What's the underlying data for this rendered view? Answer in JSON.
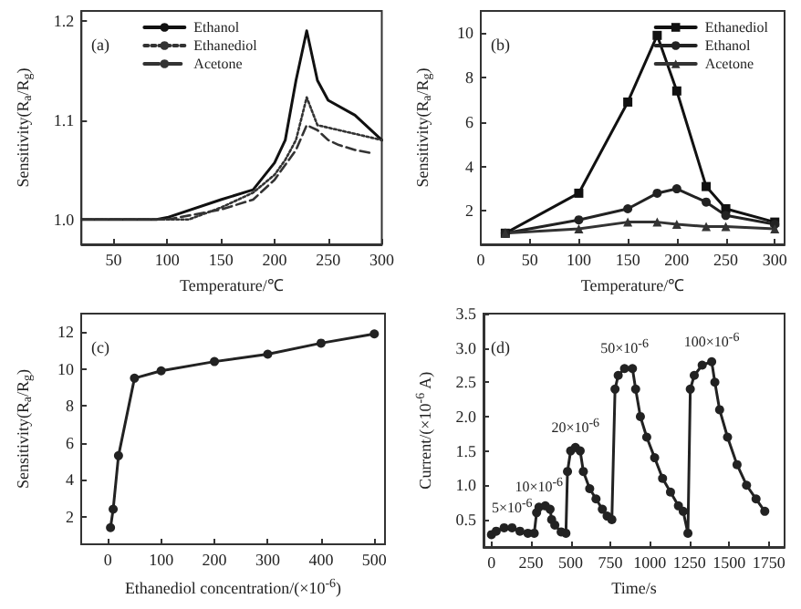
{
  "chart_data": [
    {
      "type": "line",
      "xlabel": "Temperature/℃",
      "ylabel": "Sensitivity(R$_{a}$/R$_{g}$)",
      "annotations": [
        "(a)"
      ],
      "xlim": [
        20,
        300
      ],
      "xticks": [
        50,
        100,
        150,
        200,
        250,
        300
      ],
      "ylim": [
        0.975,
        1.21
      ],
      "yticks": [
        {
          "value": 1,
          "label": "1.0"
        },
        1.1,
        1.2
      ],
      "grid": false,
      "legend": "top",
      "marker": "none",
      "series": [
        {
          "name": "Ethanol",
          "color": "#111111",
          "line_style": "solid",
          "x": [
            20,
            90,
            100,
            150,
            180,
            200,
            210,
            220,
            230,
            240,
            250,
            275,
            300
          ],
          "values": [
            1.0,
            1.0,
            1.002,
            1.02,
            1.03,
            1.057,
            1.08,
            1.14,
            1.19,
            1.14,
            1.12,
            1.105,
            1.08
          ]
        },
        {
          "name": "Ethanediol",
          "color": "#333333",
          "line_style": "dotted",
          "x": [
            20,
            100,
            120,
            150,
            180,
            200,
            210,
            220,
            230,
            240,
            300
          ],
          "values": [
            1.0,
            1.0,
            1.0,
            1.012,
            1.027,
            1.045,
            1.06,
            1.08,
            1.123,
            1.095,
            1.08
          ]
        },
        {
          "name": "Acetone",
          "color": "#333333",
          "line_style": "dashed",
          "x": [
            20,
            100,
            150,
            180,
            200,
            220,
            230,
            240,
            250,
            260,
            275,
            290
          ],
          "values": [
            1.0,
            1.0,
            1.01,
            1.02,
            1.04,
            1.07,
            1.095,
            1.09,
            1.08,
            1.075,
            1.07,
            1.067
          ]
        }
      ]
    },
    {
      "type": "line",
      "xlabel": "Temperature/℃",
      "ylabel": "Sensitivity(R$_{a}$/R$_{g}$)",
      "annotations": [
        "(b)"
      ],
      "xlim": [
        0,
        310
      ],
      "xticks": [
        0,
        50,
        100,
        150,
        200,
        250,
        300
      ],
      "ylim": [
        0.5,
        11
      ],
      "yticks": [
        2,
        4,
        6,
        8,
        10
      ],
      "grid": false,
      "legend": "top right",
      "series": [
        {
          "name": "Ethanediol",
          "color": "#111111",
          "marker": "square",
          "x": [
            25,
            100,
            150,
            180,
            200,
            230,
            250,
            300
          ],
          "values": [
            1,
            2.8,
            6.9,
            9.9,
            7.4,
            3.1,
            2.1,
            1.5
          ]
        },
        {
          "name": "Ethanol",
          "color": "#222222",
          "marker": "circle",
          "x": [
            25,
            100,
            150,
            180,
            200,
            230,
            250,
            300
          ],
          "values": [
            1,
            1.6,
            2.1,
            2.8,
            3.0,
            2.4,
            1.8,
            1.4
          ]
        },
        {
          "name": "Acetone",
          "color": "#333333",
          "marker": "triangle",
          "x": [
            25,
            100,
            150,
            180,
            200,
            230,
            250,
            300
          ],
          "values": [
            1,
            1.2,
            1.5,
            1.5,
            1.4,
            1.3,
            1.3,
            1.2
          ]
        }
      ]
    },
    {
      "type": "line",
      "xlabel": "Ethanediol concentration/(×10$^{-6}$)",
      "ylabel": "Sensitivity(R$_{a}$/R$_{g}$)",
      "annotations": [
        "(c)"
      ],
      "xlim": [
        -50,
        520
      ],
      "xticks": [
        0,
        100,
        200,
        300,
        400,
        500
      ],
      "ylim": [
        0.5,
        13
      ],
      "yticks": [
        2,
        4,
        6,
        8,
        10,
        12
      ],
      "grid": false,
      "legend": false,
      "marker": "circle",
      "series": [
        {
          "color": "#222222",
          "x": [
            5,
            10,
            20,
            50,
            100,
            200,
            300,
            400,
            500
          ],
          "values": [
            1.4,
            2.4,
            5.3,
            9.5,
            9.9,
            10.4,
            10.8,
            11.4,
            11.9
          ]
        }
      ]
    },
    {
      "type": "line",
      "xlabel": "Time/s",
      "ylabel": "Current/(×10$^{-6}$ A)",
      "annotations": [
        "(d)",
        {
          "text": "5×10$^{-6}$",
          "x": 130,
          "y": 0.38
        },
        {
          "text": "10×10$^{-6}$",
          "x": 300,
          "y": 0.68
        },
        {
          "text": "20×10$^{-6}$",
          "x": 530,
          "y": 1.55
        },
        {
          "text": "50×10$^{-6}$",
          "x": 840,
          "y": 2.7
        },
        {
          "text": "100×10$^{-6}$",
          "x": 1390,
          "y": 2.8
        }
      ],
      "xlim": [
        -50,
        1850
      ],
      "xticks": [
        0,
        250,
        500,
        750,
        1000,
        1250,
        1500,
        1750
      ],
      "ylim": [
        0.1,
        3.5
      ],
      "yticks": [
        0.5,
        {
          "value": 1,
          "label": "1.0"
        },
        1.5,
        {
          "value": 2,
          "label": "2.0"
        },
        2.5,
        {
          "value": 3,
          "label": "3.0"
        },
        3.5
      ],
      "grid": false,
      "legend": false,
      "marker": "circle",
      "series": [
        {
          "color": "#222222",
          "x": [
            0,
            30,
            80,
            130,
            180,
            230,
            270,
            285,
            300,
            340,
            370,
            380,
            400,
            440,
            470,
            480,
            500,
            530,
            560,
            580,
            620,
            660,
            700,
            730,
            760,
            780,
            800,
            840,
            890,
            910,
            940,
            980,
            1030,
            1080,
            1130,
            1180,
            1210,
            1240,
            1255,
            1280,
            1330,
            1390,
            1410,
            1440,
            1490,
            1550,
            1610,
            1670,
            1725
          ],
          "values": [
            0.28,
            0.33,
            0.38,
            0.38,
            0.33,
            0.3,
            0.3,
            0.6,
            0.68,
            0.7,
            0.65,
            0.5,
            0.42,
            0.32,
            0.3,
            1.2,
            1.5,
            1.55,
            1.5,
            1.2,
            0.95,
            0.8,
            0.65,
            0.55,
            0.5,
            2.4,
            2.6,
            2.7,
            2.7,
            2.4,
            2.0,
            1.7,
            1.4,
            1.1,
            0.9,
            0.7,
            0.62,
            0.3,
            2.4,
            2.6,
            2.75,
            2.8,
            2.5,
            2.1,
            1.7,
            1.3,
            1.0,
            0.8,
            0.62
          ]
        }
      ]
    }
  ]
}
